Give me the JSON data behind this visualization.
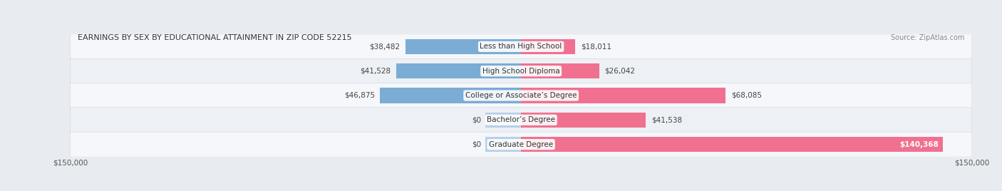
{
  "title": "EARNINGS BY SEX BY EDUCATIONAL ATTAINMENT IN ZIP CODE 52215",
  "source": "Source: ZipAtlas.com",
  "categories": [
    "Less than High School",
    "High School Diploma",
    "College or Associate’s Degree",
    "Bachelor’s Degree",
    "Graduate Degree"
  ],
  "male_values": [
    38482,
    41528,
    46875,
    0,
    0
  ],
  "female_values": [
    18011,
    26042,
    68085,
    41538,
    140368
  ],
  "male_color_full": "#7bacd4",
  "male_color_light": "#b8cfe8",
  "female_color_full": "#f07090",
  "female_color_light": "#f0b0c0",
  "xlim_left": 150000,
  "xlim_right": 150000,
  "bg_color": "#e8ecf0",
  "row_bg_even": "#f5f7fa",
  "row_bg_odd": "#eaecf2",
  "title_fontsize": 8.0,
  "source_fontsize": 7.0,
  "label_fontsize": 7.5,
  "value_fontsize": 7.5,
  "bar_height": 0.62
}
